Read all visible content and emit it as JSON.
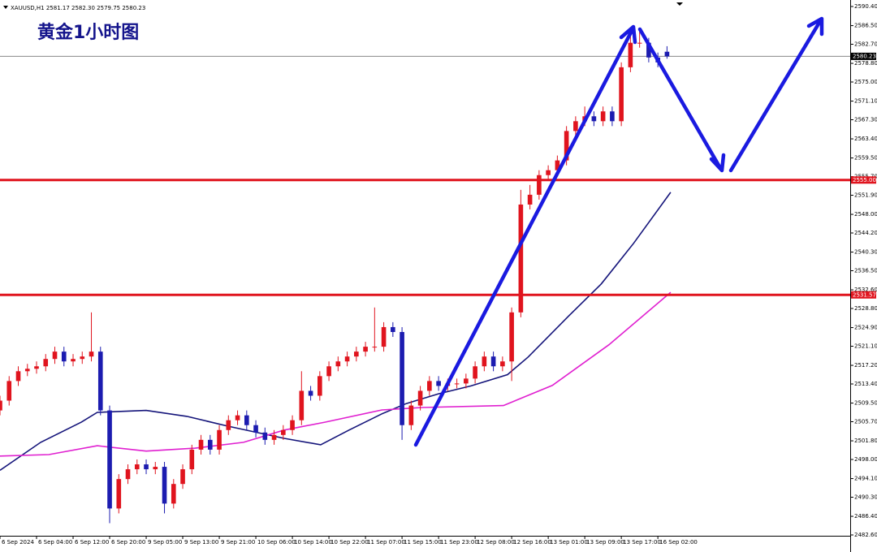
{
  "chart_data": {
    "type": "candlestick",
    "title": "黄金1小时图",
    "header": "XAUUSD,H1  2581.17 2582.30 2579.75 2580.23",
    "x": [
      0,
      2,
      4,
      6,
      8,
      10,
      12,
      14,
      16,
      18,
      20,
      22,
      24,
      26,
      28,
      30,
      32,
      34,
      36,
      38,
      40,
      42,
      44,
      46,
      48,
      50,
      52,
      54,
      56,
      58,
      60,
      62,
      64,
      66,
      68,
      70,
      72,
      74,
      76,
      78,
      80,
      82,
      84,
      86,
      88,
      90,
      92,
      94,
      96,
      98,
      100,
      102,
      104,
      106,
      108,
      110,
      112,
      114,
      116,
      118,
      120,
      122,
      124,
      126,
      128,
      130,
      132,
      134,
      136,
      138,
      140,
      142,
      144,
      146
    ],
    "open": [
      2508,
      2510,
      2514,
      2516,
      2516.5,
      2517,
      2518.5,
      2520,
      2518,
      2518.5,
      2519,
      2520,
      2508,
      2488,
      2494,
      2496,
      2497,
      2496,
      2496.5,
      2489,
      2493,
      2496,
      2500,
      2502,
      2500,
      2504,
      2506,
      2507,
      2505,
      2503.5,
      2502,
      2503,
      2504,
      2506,
      2512,
      2511,
      2515,
      2517,
      2518,
      2519,
      2520,
      2521,
      2521,
      2525,
      2524,
      2505,
      2509,
      2512,
      2514,
      2513,
      2513.5,
      2513.5,
      2514.5,
      2517,
      2519,
      2517,
      2518,
      2528,
      2550,
      2552,
      2556,
      2557,
      2559,
      2565,
      2567,
      2568,
      2567,
      2569,
      2567,
      2578,
      2583,
      2583,
      2580,
      2581.17
    ],
    "high": [
      2511,
      2515,
      2517,
      2517.5,
      2518,
      2519.5,
      2521,
      2521,
      2519.5,
      2520,
      2528,
      2521,
      2509,
      2495,
      2497,
      2498,
      2498,
      2497.5,
      2497.5,
      2494,
      2497,
      2501,
      2503,
      2503,
      2505,
      2507,
      2508,
      2508,
      2506,
      2504.5,
      2504,
      2505,
      2507,
      2516,
      2513,
      2516,
      2518,
      2519,
      2520,
      2521,
      2522,
      2529,
      2526,
      2526,
      2525,
      2510,
      2513,
      2515,
      2515,
      2514.5,
      2514.5,
      2515.5,
      2518,
      2520,
      2520,
      2519,
      2529,
      2553,
      2554,
      2557,
      2558,
      2560,
      2566,
      2568,
      2570,
      2569,
      2570,
      2570,
      2579,
      2585,
      2586,
      2584,
      2581,
      2582.3
    ],
    "low": [
      2507,
      2509,
      2513,
      2515,
      2515.5,
      2516,
      2517.5,
      2517,
      2517,
      2517.5,
      2518,
      2507,
      2485,
      2487,
      2493,
      2495,
      2495,
      2495,
      2487,
      2488,
      2492,
      2495,
      2499,
      2499,
      2499,
      2503,
      2505,
      2504,
      2502.5,
      2501,
      2501,
      2502,
      2503,
      2505,
      2510,
      2510,
      2514,
      2516,
      2517,
      2518,
      2519,
      2520,
      2520,
      2523,
      2502,
      2504,
      2508,
      2511,
      2512,
      2512,
      2512.5,
      2512.5,
      2513.5,
      2516,
      2516,
      2516,
      2514,
      2527,
      2549,
      2551,
      2555,
      2556,
      2558,
      2564,
      2566,
      2566,
      2566,
      2566,
      2566,
      2577,
      2582,
      2579,
      2578,
      2579.75
    ],
    "close": [
      2510,
      2514,
      2516,
      2516.5,
      2517,
      2518.5,
      2520,
      2518,
      2518.5,
      2519,
      2520,
      2508,
      2488,
      2494,
      2496,
      2497,
      2496,
      2496.5,
      2489,
      2493,
      2496,
      2500,
      2502,
      2500,
      2504,
      2506,
      2507,
      2505,
      2503.5,
      2502,
      2503,
      2504,
      2506,
      2512,
      2511,
      2515,
      2517,
      2518,
      2519,
      2520,
      2521,
      2521,
      2525,
      2524,
      2505,
      2509,
      2512,
      2514,
      2513,
      2513.5,
      2513.5,
      2514.5,
      2517,
      2519,
      2517,
      2518,
      2528,
      2550,
      2552,
      2556,
      2557,
      2559,
      2565,
      2567,
      2568,
      2567,
      2569,
      2567,
      2578,
      2583,
      2583,
      2580,
      2579,
      2580.23
    ],
    "up_color": "#e0141e",
    "down_color": "#1c1cb0",
    "lines": [
      {
        "color": "#14147a",
        "x": [
          0,
          8.9,
          17.8,
          21.3,
          32,
          40.9,
          49.8,
          62.2,
          70.2,
          76.4,
          83.6,
          88.9,
          96,
          103.1,
          111.1,
          115.6,
          124.4,
          131.6,
          138.7,
          146.8
        ],
        "values": [
          2495.8,
          2501.5,
          2505.6,
          2507.6,
          2508,
          2506.8,
          2504.8,
          2502.3,
          2501,
          2504,
          2507.3,
          2509.4,
          2511.4,
          2513,
          2515.3,
          2518.9,
          2527.2,
          2533.8,
          2542.1,
          2552.5
        ]
      },
      {
        "color": "#e020d0",
        "x": [
          0,
          10.7,
          21.3,
          32,
          42.7,
          53.3,
          62.2,
          71.1,
          83.6,
          92.4,
          110.2,
          120.9,
          133.3,
          146.8
        ],
        "values": [
          2498.7,
          2499,
          2500.8,
          2499.7,
          2500.3,
          2501.5,
          2504,
          2505.6,
          2508.1,
          2508.6,
          2509,
          2513.1,
          2521.4,
          2532.1
        ]
      }
    ],
    "levels": [
      {
        "value": 2555.0,
        "label": "2555.00",
        "color": "#e0141e"
      },
      {
        "value": 2531.57,
        "label": "2531.57",
        "color": "#e0141e"
      }
    ],
    "current": {
      "value": 2580.23,
      "label": "2580.23"
    },
    "xlim": [
      0,
      186.1
    ],
    "ylim": [
      2482.6,
      2590.4
    ],
    "xticks": [
      {
        "value": 0,
        "label": "6 Sep 2024"
      },
      {
        "value": 8,
        "label": "6 Sep 04:00"
      },
      {
        "value": 16,
        "label": "6 Sep 12:00"
      },
      {
        "value": 24,
        "label": "6 Sep 20:00"
      },
      {
        "value": 32,
        "label": "9 Sep 05:00"
      },
      {
        "value": 40,
        "label": "9 Sep 13:00"
      },
      {
        "value": 48,
        "label": "9 Sep 21:00"
      },
      {
        "value": 56,
        "label": "10 Sep 06:00"
      },
      {
        "value": 64,
        "label": "10 Sep 14:00"
      },
      {
        "value": 72,
        "label": "10 Sep 22:00"
      },
      {
        "value": 80,
        "label": "11 Sep 07:00"
      },
      {
        "value": 88,
        "label": "11 Sep 15:00"
      },
      {
        "value": 96,
        "label": "11 Sep 23:00"
      },
      {
        "value": 104,
        "label": "12 Sep 08:00"
      },
      {
        "value": 112,
        "label": "12 Sep 16:00"
      },
      {
        "value": 120,
        "label": "13 Sep 01:00"
      },
      {
        "value": 128,
        "label": "13 Sep 09:00"
      },
      {
        "value": 136,
        "label": "13 Sep 17:00"
      },
      {
        "value": 144,
        "label": "16 Sep 02:00"
      }
    ],
    "yticks": [
      {
        "value": 2590.4,
        "label": "2590.40"
      },
      {
        "value": 2586.5,
        "label": "2586.50"
      },
      {
        "value": 2582.7,
        "label": "2582.70"
      },
      {
        "value": 2578.8,
        "label": "2578.80"
      },
      {
        "value": 2575.0,
        "label": "2575.00"
      },
      {
        "value": 2571.1,
        "label": "2571.10"
      },
      {
        "value": 2567.3,
        "label": "2567.30"
      },
      {
        "value": 2563.4,
        "label": "2563.40"
      },
      {
        "value": 2559.5,
        "label": "2559.50"
      },
      {
        "value": 2555.7,
        "label": "2555.70"
      },
      {
        "value": 2551.9,
        "label": "2551.90"
      },
      {
        "value": 2548.0,
        "label": "2548.00"
      },
      {
        "value": 2544.2,
        "label": "2544.20"
      },
      {
        "value": 2540.3,
        "label": "2540.30"
      },
      {
        "value": 2536.5,
        "label": "2536.50"
      },
      {
        "value": 2532.6,
        "label": "2532.60"
      },
      {
        "value": 2528.8,
        "label": "2528.80"
      },
      {
        "value": 2524.9,
        "label": "2524.90"
      },
      {
        "value": 2521.1,
        "label": "2521.10"
      },
      {
        "value": 2517.2,
        "label": "2517.20"
      },
      {
        "value": 2513.4,
        "label": "2513.40"
      },
      {
        "value": 2509.5,
        "label": "2509.50"
      },
      {
        "value": 2505.7,
        "label": "2505.70"
      },
      {
        "value": 2501.8,
        "label": "2501.80"
      },
      {
        "value": 2498.0,
        "label": "2498.00"
      },
      {
        "value": 2494.1,
        "label": "2494.10"
      },
      {
        "value": 2490.3,
        "label": "2490.30"
      },
      {
        "value": 2486.4,
        "label": "2486.40"
      },
      {
        "value": 2482.6,
        "label": "2482.60"
      }
    ]
  }
}
